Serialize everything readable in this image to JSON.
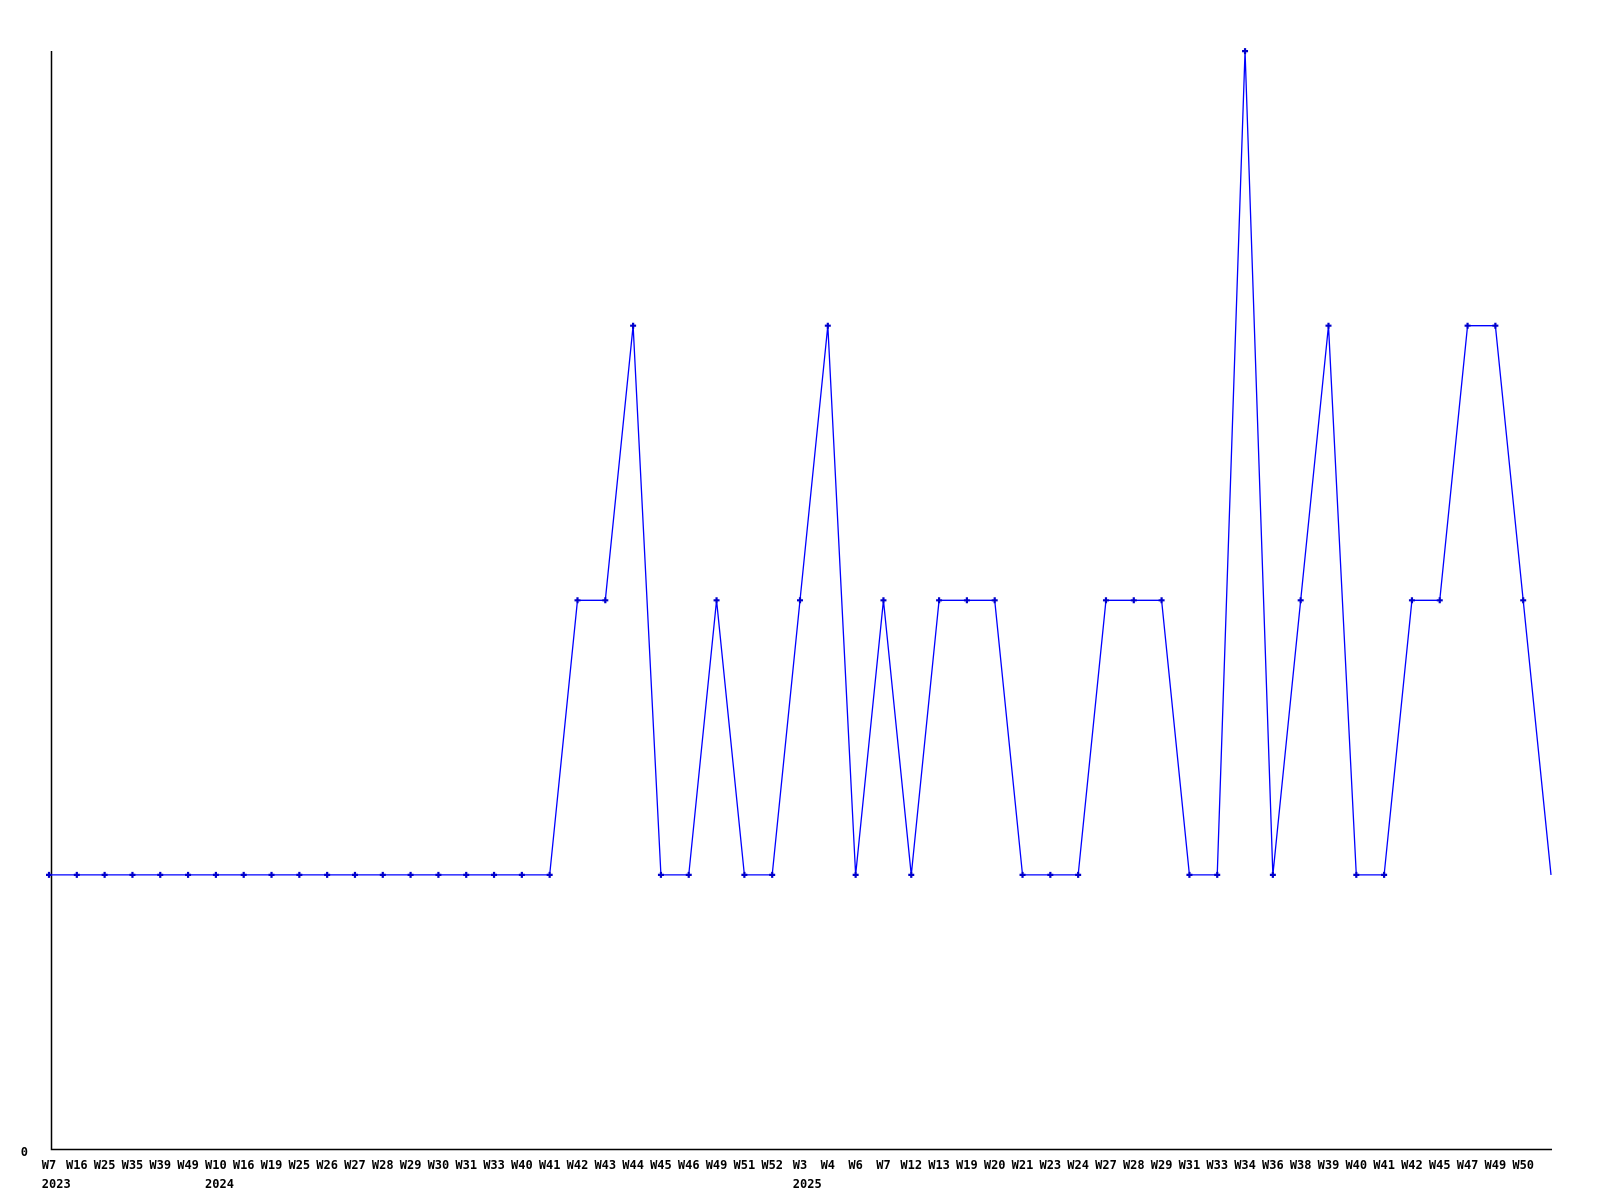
{
  "page": {
    "background": "#ffffff"
  },
  "chart_data": {
    "type": "line",
    "title": "",
    "xlabel": "",
    "ylabel": "",
    "y_origin_label": "0",
    "line_color": "#0000ff",
    "marker_color": "#0000cc",
    "axis_color": "#000000",
    "marker": "plus",
    "grid": false,
    "legend": "none",
    "ylim": [
      0,
      4.1
    ],
    "categories": [
      "W7",
      "W16",
      "W25",
      "W35",
      "W39",
      "W49",
      "W10",
      "W16",
      "W19",
      "W25",
      "W26",
      "W27",
      "W28",
      "W29",
      "W30",
      "W31",
      "W33",
      "W40",
      "W41",
      "W42",
      "W43",
      "W44",
      "W45",
      "W46",
      "W49",
      "W51",
      "W52",
      "W3",
      "W4",
      "W6",
      "W7",
      "W12",
      "W13",
      "W19",
      "W20",
      "W21",
      "W23",
      "W24",
      "W27",
      "W28",
      "W29",
      "W31",
      "W33",
      "W34",
      "W36",
      "W38",
      "W39",
      "W40",
      "W41",
      "W42",
      "W45",
      "W47",
      "W49",
      "W50"
    ],
    "year_labels": [
      {
        "category_index": 0,
        "label": "2023"
      },
      {
        "category_index": 6,
        "label": "2024"
      },
      {
        "category_index": 27,
        "label": "2025"
      }
    ],
    "values": [
      1,
      1,
      1,
      1,
      1,
      1,
      1,
      1,
      1,
      1,
      1,
      1,
      1,
      1,
      1,
      1,
      1,
      1,
      1,
      2,
      2,
      3,
      1,
      1,
      2,
      1,
      1,
      2,
      3,
      1,
      2,
      1,
      2,
      2,
      2,
      1,
      1,
      1,
      2,
      2,
      2,
      1,
      1,
      4,
      1,
      2,
      3,
      1,
      1,
      2,
      2,
      3,
      3,
      2,
      1
    ],
    "trailing_unlabeled_point": true
  }
}
